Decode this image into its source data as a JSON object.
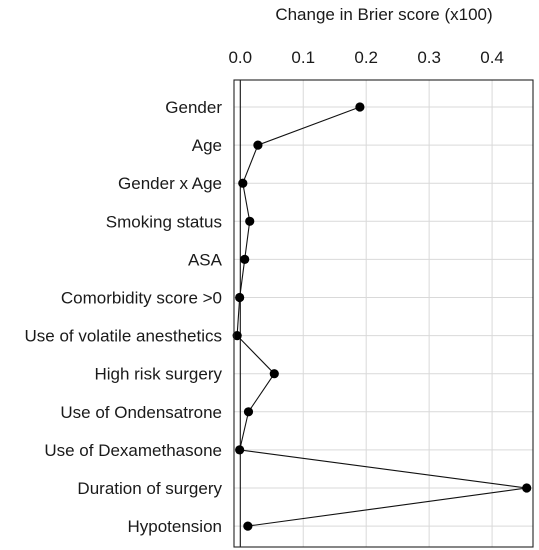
{
  "chart_data": {
    "type": "line",
    "orientation": "horizontal",
    "title": "",
    "xlabel": "Change in Brier score (x100)",
    "xlabel_position": "top",
    "ylabel": "",
    "xlim": [
      -0.01,
      0.465
    ],
    "xticks": [
      0.0,
      0.1,
      0.2,
      0.3,
      0.4
    ],
    "xtick_labels": [
      "0.0",
      "0.1",
      "0.2",
      "0.3",
      "0.4"
    ],
    "grid": true,
    "reference_line_x": 0.0,
    "categories": [
      "Gender",
      "Age",
      "Gender x Age",
      "Smoking status",
      "ASA",
      "Comorbidity score >0",
      "Use of volatile anesthetics",
      "High risk surgery",
      "Use of Ondensatrone",
      "Use of Dexamethasone",
      "Duration of surgery",
      "Hypotension"
    ],
    "values": [
      0.19,
      0.028,
      0.004,
      0.015,
      0.007,
      -0.001,
      -0.005,
      0.054,
      0.013,
      -0.001,
      0.455,
      0.012
    ]
  }
}
